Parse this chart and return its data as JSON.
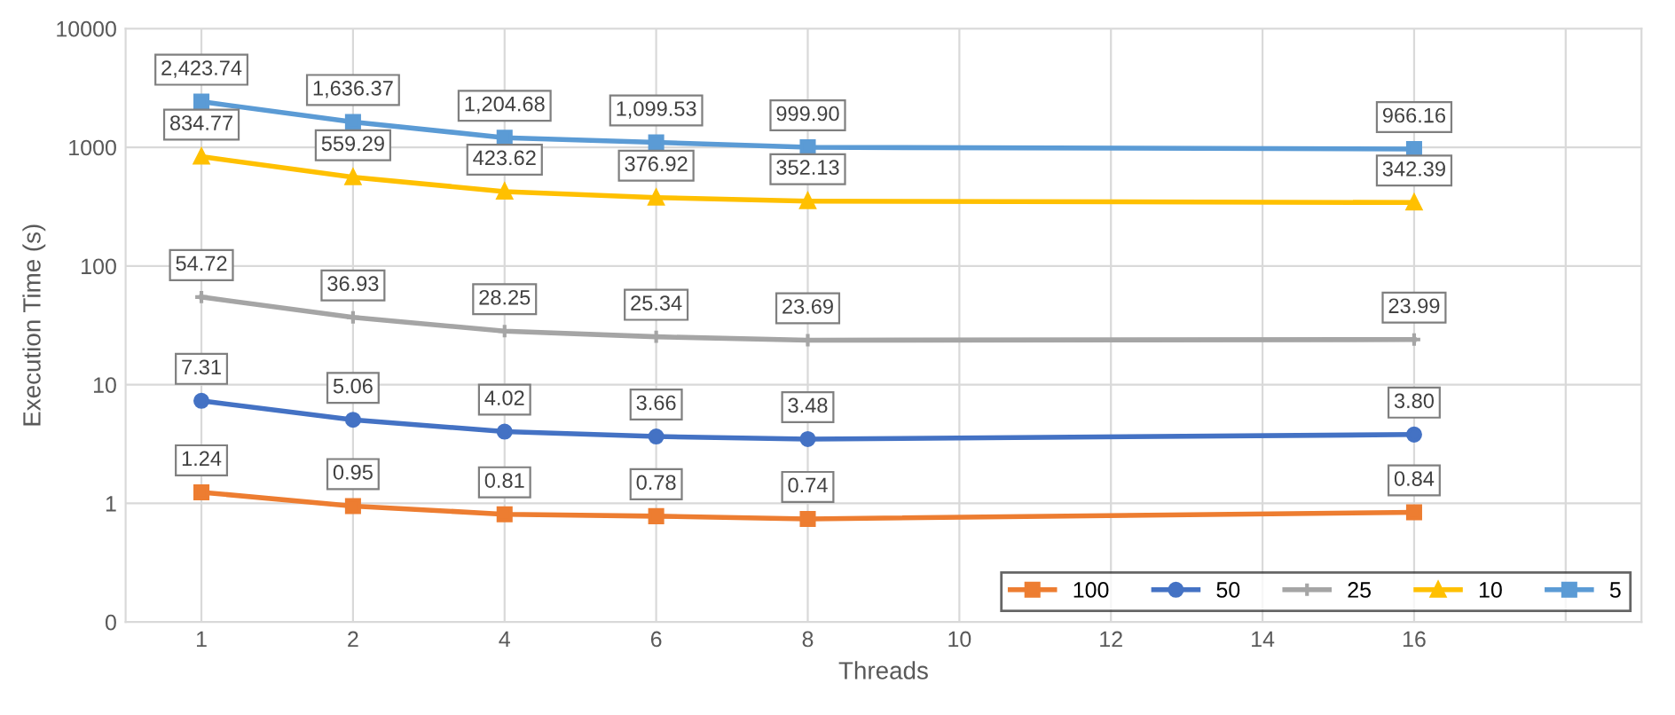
{
  "chart_data": {
    "type": "line",
    "xlabel": "Threads",
    "ylabel": "Execution Time (s)",
    "log": "y",
    "ylim": [
      0.1,
      10000
    ],
    "yticks": [
      {
        "value": 0.1,
        "label": "0"
      },
      1,
      10,
      100,
      1000,
      10000
    ],
    "categories": [
      "1",
      "2",
      "4",
      "6",
      "8",
      "10",
      "12",
      "14",
      "16",
      null
    ],
    "grid": true,
    "legend": "bottom right",
    "data_labels": true,
    "series": [
      {
        "name": "100",
        "color": "#ed7d31",
        "marker": "square",
        "values": [
          1.24,
          0.95,
          0.81,
          0.78,
          0.74,
          null,
          null,
          null,
          0.84,
          null
        ]
      },
      {
        "name": "50",
        "color": "#4472c4",
        "marker": "circle",
        "values": [
          7.31,
          5.06,
          4.02,
          3.66,
          3.48,
          null,
          null,
          null,
          3.8,
          null
        ],
        "value_labels": [
          "7.31",
          "5.06",
          "4.02",
          "3.66",
          "3.48",
          null,
          null,
          null,
          "3.80",
          null
        ]
      },
      {
        "name": "25",
        "color": "#a5a5a5",
        "marker": "cross",
        "values": [
          54.72,
          36.93,
          28.25,
          25.34,
          23.69,
          null,
          null,
          null,
          23.99,
          null
        ]
      },
      {
        "name": "10",
        "color": "#ffc000",
        "marker": "triangle",
        "values": [
          834.77,
          559.29,
          423.62,
          376.92,
          352.13,
          null,
          null,
          null,
          342.39,
          null
        ]
      },
      {
        "name": "5",
        "color": "#5b9bd5",
        "marker": "square",
        "values": [
          2423.74,
          1636.37,
          1204.68,
          1099.53,
          999.9,
          null,
          null,
          null,
          966.16,
          null
        ],
        "value_labels": [
          "2,423.74",
          "1,636.37",
          "1,204.68",
          "1,099.53",
          "999.90",
          null,
          null,
          null,
          "966.16",
          null
        ]
      }
    ]
  }
}
